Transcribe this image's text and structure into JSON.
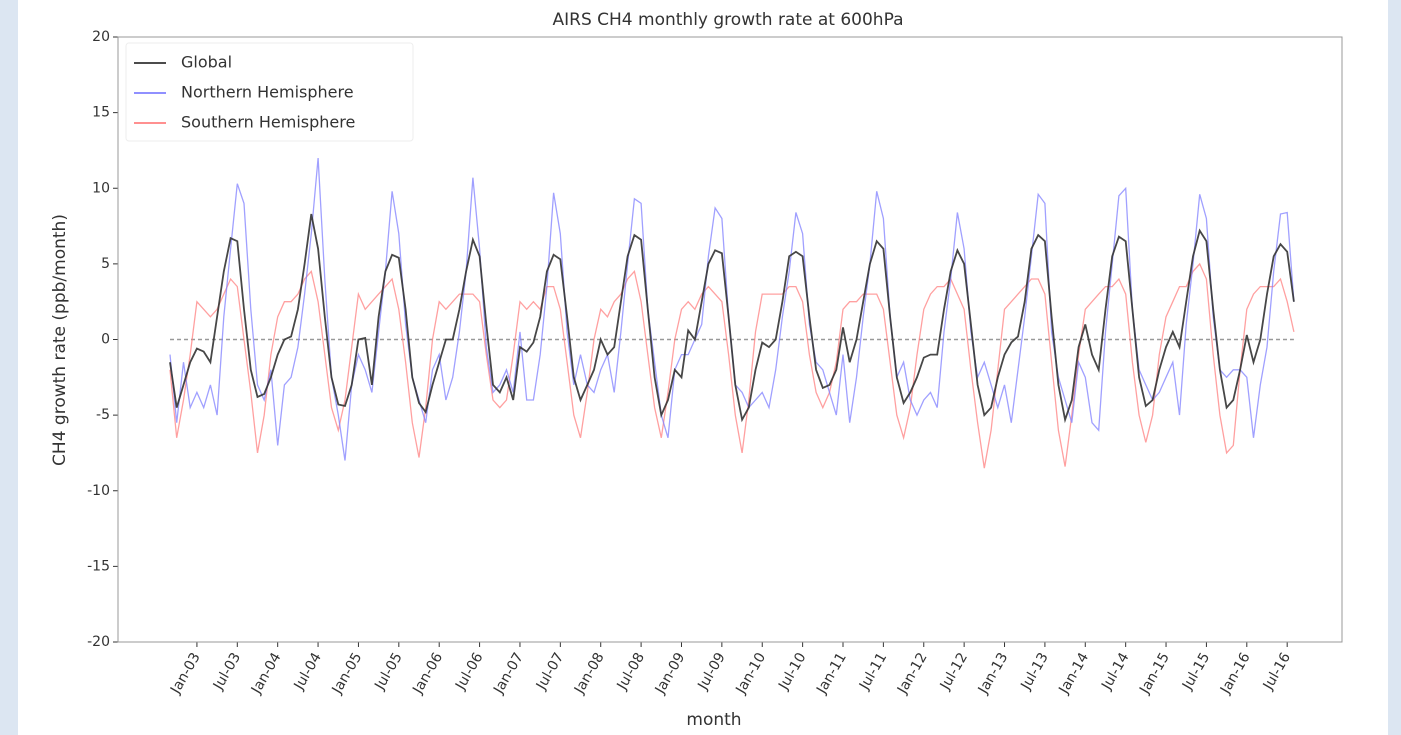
{
  "chart_data": {
    "type": "line",
    "title": "AIRS CH4 monthly growth rate at 600hPa",
    "xlabel": "month",
    "ylabel": "CH4 growth rate (ppb/month)",
    "ylim": [
      -20,
      20
    ],
    "yticks": [
      -20,
      -15,
      -10,
      -5,
      0,
      5,
      10,
      15,
      20
    ],
    "hline": 0,
    "legend": "upper left",
    "categories": [
      null,
      null,
      null,
      null,
      "Jan-03",
      null,
      null,
      null,
      null,
      null,
      "Jul-03",
      null,
      null,
      null,
      null,
      null,
      "Jan-04",
      null,
      null,
      null,
      null,
      null,
      "Jul-04",
      null,
      null,
      null,
      null,
      null,
      "Jan-05",
      null,
      null,
      null,
      null,
      null,
      "Jul-05",
      null,
      null,
      null,
      null,
      null,
      "Jan-06",
      null,
      null,
      null,
      null,
      null,
      "Jul-06",
      null,
      null,
      null,
      null,
      null,
      "Jan-07",
      null,
      null,
      null,
      null,
      null,
      "Jul-07",
      null,
      null,
      null,
      null,
      null,
      "Jan-08",
      null,
      null,
      null,
      null,
      null,
      "Jul-08",
      null,
      null,
      null,
      null,
      null,
      "Jan-09",
      null,
      null,
      null,
      null,
      null,
      "Jul-09",
      null,
      null,
      null,
      null,
      null,
      "Jan-10",
      null,
      null,
      null,
      null,
      null,
      "Jul-10",
      null,
      null,
      null,
      null,
      null,
      "Jan-11",
      null,
      null,
      null,
      null,
      null,
      "Jul-11",
      null,
      null,
      null,
      null,
      null,
      "Jan-12",
      null,
      null,
      null,
      null,
      null,
      "Jul-12",
      null,
      null,
      null,
      null,
      null,
      "Jan-13",
      null,
      null,
      null,
      null,
      null,
      "Jul-13",
      null,
      null,
      null,
      null,
      null,
      "Jan-14",
      null,
      null,
      null,
      null,
      null,
      "Jul-14",
      null,
      null,
      null,
      null,
      null,
      "Jan-15",
      null,
      null,
      null,
      null,
      null,
      "Jul-15",
      null,
      null,
      null,
      null,
      null,
      "Jan-16",
      null,
      null,
      null,
      null,
      null,
      "Jul-16",
      null
    ],
    "series": [
      {
        "name": "Global",
        "color": "#333333",
        "values": [
          -1.5,
          -4.5,
          -3.0,
          -1.5,
          -0.6,
          -0.8,
          -1.5,
          1.5,
          4.5,
          6.7,
          6.5,
          2.0,
          -2.0,
          -3.8,
          -3.6,
          -2.5,
          -1.0,
          0.0,
          0.2,
          2.0,
          5.0,
          8.3,
          6.0,
          1.5,
          -2.5,
          -4.3,
          -4.4,
          -3.0,
          0.0,
          0.1,
          -3.0,
          1.5,
          4.5,
          5.6,
          5.4,
          2.0,
          -2.5,
          -4.2,
          -4.8,
          -3.0,
          -1.5,
          0.0,
          0.0,
          2.0,
          4.5,
          6.6,
          5.5,
          1.0,
          -3.0,
          -3.5,
          -2.5,
          -4.0,
          -0.5,
          -0.8,
          -0.2,
          1.5,
          4.5,
          5.6,
          5.3,
          1.5,
          -2.5,
          -4.0,
          -3.0,
          -2.0,
          0.0,
          -1.0,
          -0.5,
          2.5,
          5.5,
          6.9,
          6.6,
          2.0,
          -2.5,
          -5.0,
          -4.0,
          -2.0,
          -2.5,
          0.6,
          0.0,
          2.5,
          5.0,
          5.9,
          5.7,
          1.5,
          -3.0,
          -5.3,
          -4.5,
          -2.0,
          -0.2,
          -0.5,
          0.0,
          2.5,
          5.5,
          5.8,
          5.5,
          1.5,
          -2.0,
          -3.2,
          -3.0,
          -2.0,
          0.8,
          -1.5,
          0.0,
          2.5,
          5.0,
          6.5,
          6.0,
          1.5,
          -2.5,
          -4.2,
          -3.5,
          -2.5,
          -1.2,
          -1.0,
          -1.0,
          2.0,
          4.5,
          5.9,
          5.0,
          1.0,
          -3.0,
          -5.0,
          -4.5,
          -2.5,
          -1.0,
          -0.2,
          0.2,
          2.5,
          6.0,
          6.9,
          6.5,
          1.5,
          -3.0,
          -5.3,
          -4.0,
          -0.5,
          1.0,
          -1.0,
          -2.0,
          2.0,
          5.5,
          6.8,
          6.5,
          2.0,
          -2.5,
          -4.4,
          -4.0,
          -2.0,
          -0.5,
          0.5,
          -0.5,
          2.5,
          5.5,
          7.2,
          6.5,
          2.0,
          -2.0,
          -4.5,
          -4.0,
          -2.0,
          0.3,
          -1.5,
          0.0,
          3.0,
          5.5,
          6.3,
          5.8,
          2.5
        ]
      },
      {
        "name": "Northern Hemisphere",
        "color": "#8080ff",
        "values": [
          -1.0,
          -5.5,
          -1.5,
          -4.5,
          -3.5,
          -4.5,
          -3.0,
          -5.0,
          1.5,
          6.0,
          10.3,
          9.0,
          2.0,
          -3.0,
          -4.0,
          -2.0,
          -7.0,
          -3.0,
          -2.5,
          -0.5,
          3.0,
          7.0,
          12.0,
          4.0,
          -2.5,
          -5.0,
          -8.0,
          -3.0,
          -1.0,
          -2.0,
          -3.5,
          0.5,
          4.5,
          9.8,
          7.0,
          1.0,
          -2.5,
          -4.0,
          -5.5,
          -2.0,
          -1.0,
          -4.0,
          -2.5,
          0.5,
          4.5,
          10.7,
          6.0,
          -0.5,
          -3.5,
          -3.0,
          -2.0,
          -3.5,
          0.5,
          -4.0,
          -4.0,
          -1.0,
          3.5,
          9.7,
          7.0,
          0.5,
          -3.0,
          -1.0,
          -3.0,
          -3.5,
          -2.0,
          -1.0,
          -3.5,
          0.5,
          5.0,
          9.3,
          9.0,
          2.0,
          -1.5,
          -5.0,
          -6.5,
          -2.0,
          -1.0,
          -1.0,
          0.0,
          1.0,
          5.5,
          8.7,
          8.0,
          1.5,
          -3.0,
          -3.5,
          -4.5,
          -4.0,
          -3.5,
          -4.5,
          -2.0,
          1.5,
          4.5,
          8.4,
          7.0,
          1.0,
          -1.5,
          -2.0,
          -3.5,
          -5.0,
          -1.0,
          -5.5,
          -2.5,
          1.5,
          5.0,
          9.8,
          8.0,
          1.5,
          -2.5,
          -1.5,
          -4.0,
          -5.0,
          -4.0,
          -3.5,
          -4.5,
          0.5,
          4.0,
          8.4,
          6.0,
          0.5,
          -2.5,
          -1.5,
          -3.0,
          -4.5,
          -3.0,
          -5.5,
          -2.0,
          1.5,
          5.5,
          9.6,
          9.0,
          0.5,
          -2.5,
          -4.0,
          -5.5,
          -1.5,
          -2.5,
          -5.5,
          -6.0,
          0.5,
          5.0,
          9.5,
          10.0,
          2.0,
          -2.0,
          -3.0,
          -4.0,
          -3.5,
          -2.5,
          -1.5,
          -5.0,
          1.0,
          5.0,
          9.6,
          8.0,
          1.5,
          -2.0,
          -2.5,
          -2.0,
          -2.0,
          -2.5,
          -6.5,
          -3.0,
          -0.5,
          4.5,
          8.3,
          8.4,
          2.5
        ]
      },
      {
        "name": "Southern Hemisphere",
        "color": "#ff8080",
        "values": [
          -2.0,
          -6.5,
          -4.0,
          -1.0,
          2.5,
          2.0,
          1.5,
          2.0,
          3.0,
          4.0,
          3.5,
          0.0,
          -3.5,
          -7.5,
          -5.0,
          -1.0,
          1.5,
          2.5,
          2.5,
          3.0,
          4.0,
          4.5,
          2.5,
          -1.0,
          -4.5,
          -6.0,
          -4.0,
          -0.5,
          3.0,
          2.0,
          2.5,
          3.0,
          3.5,
          4.0,
          2.0,
          -1.5,
          -5.5,
          -7.8,
          -4.5,
          0.0,
          2.5,
          2.0,
          2.5,
          3.0,
          3.0,
          3.0,
          2.5,
          -1.0,
          -4.0,
          -4.5,
          -4.0,
          -1.0,
          2.5,
          2.0,
          2.5,
          2.0,
          3.5,
          3.5,
          2.0,
          -1.5,
          -5.0,
          -6.5,
          -3.5,
          0.0,
          2.0,
          1.5,
          2.5,
          3.0,
          4.0,
          4.5,
          2.5,
          -1.0,
          -4.5,
          -6.5,
          -3.5,
          0.0,
          2.0,
          2.5,
          2.0,
          3.0,
          3.5,
          3.0,
          2.5,
          -1.0,
          -5.0,
          -7.5,
          -4.0,
          0.5,
          3.0,
          3.0,
          3.0,
          3.0,
          3.5,
          3.5,
          2.5,
          -1.0,
          -3.5,
          -4.5,
          -3.5,
          -1.5,
          2.0,
          2.5,
          2.5,
          3.0,
          3.0,
          3.0,
          2.0,
          -1.5,
          -5.0,
          -6.5,
          -4.5,
          -1.0,
          2.0,
          3.0,
          3.5,
          3.5,
          4.0,
          3.0,
          2.0,
          -2.0,
          -5.5,
          -8.5,
          -6.0,
          -2.0,
          2.0,
          2.5,
          3.0,
          3.5,
          4.0,
          4.0,
          3.0,
          -1.5,
          -6.0,
          -8.4,
          -5.0,
          -1.0,
          2.0,
          2.5,
          3.0,
          3.5,
          3.5,
          4.0,
          3.0,
          -1.5,
          -5.0,
          -6.8,
          -5.0,
          -1.0,
          1.5,
          2.5,
          3.5,
          3.5,
          4.5,
          5.0,
          4.0,
          -1.0,
          -5.0,
          -7.5,
          -7.0,
          -2.0,
          2.0,
          3.0,
          3.5,
          3.5,
          3.5,
          4.0,
          2.5,
          0.5
        ]
      }
    ]
  }
}
